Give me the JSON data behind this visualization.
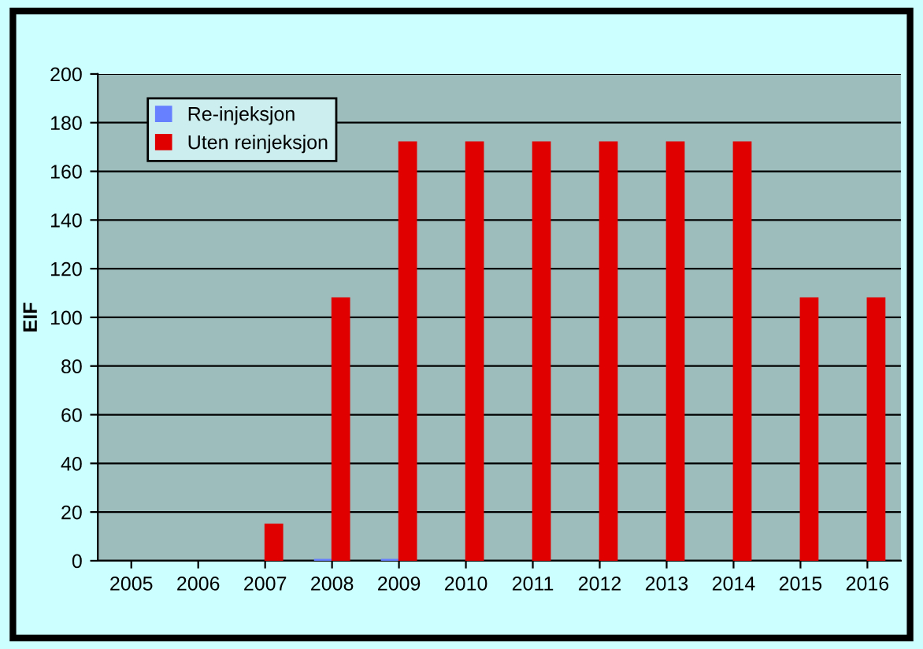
{
  "chart_data": {
    "type": "bar",
    "ylabel": "EIF",
    "categories": [
      "2005",
      "2006",
      "2007",
      "2008",
      "2009",
      "2010",
      "2011",
      "2012",
      "2013",
      "2014",
      "2015",
      "2016"
    ],
    "series": [
      {
        "name": "Re-injeksjon",
        "color": "#6680ff",
        "values": [
          null,
          null,
          null,
          0.5,
          0.5,
          null,
          null,
          null,
          null,
          null,
          null,
          null
        ]
      },
      {
        "name": "Uten reinjeksjon",
        "color": "#e00000",
        "values": [
          null,
          null,
          15,
          108,
          172,
          172,
          172,
          172,
          172,
          172,
          108,
          108
        ]
      }
    ],
    "ylim": [
      0,
      200
    ],
    "yticks": [
      0,
      20,
      40,
      60,
      80,
      100,
      120,
      140,
      160,
      180,
      200
    ],
    "grid": "y",
    "legend": "top left"
  }
}
